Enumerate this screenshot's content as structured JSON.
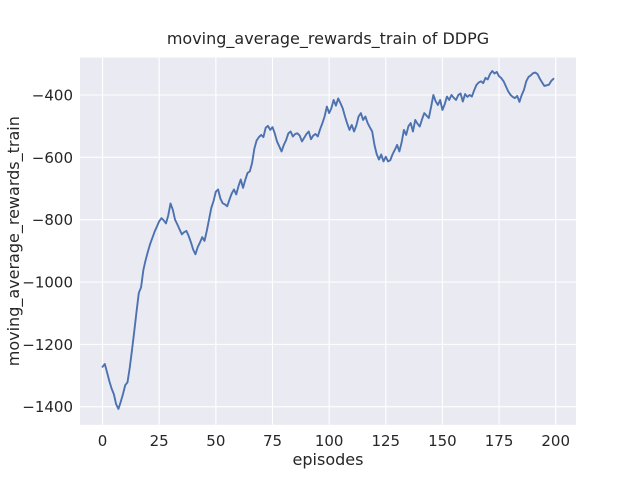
{
  "chart_data": {
    "type": "line",
    "title": "moving_average_rewards_train of DDPG",
    "xlabel": "episodes",
    "ylabel": "moving_average_rewards_train",
    "xticks": [
      0,
      25,
      50,
      75,
      100,
      125,
      150,
      175,
      200
    ],
    "yticks": [
      -400,
      -600,
      -800,
      -1000,
      -1200,
      -1400
    ],
    "xlim": [
      -9.95,
      208.95
    ],
    "ylim": [
      -1458,
      -280
    ],
    "grid": true,
    "legend_position": "none",
    "colors": {
      "figure_background": "#ffffff",
      "plot_background": "#eaeaf2",
      "grid": "#ffffff",
      "text": "#262626",
      "line": "#4c72b0"
    },
    "series": [
      {
        "name": "moving_average_rewards_train",
        "color": "#4c72b0",
        "points": [
          [
            0,
            -1272
          ],
          [
            1,
            -1263
          ],
          [
            2,
            -1290
          ],
          [
            3,
            -1318
          ],
          [
            4,
            -1342
          ],
          [
            5,
            -1360
          ],
          [
            6,
            -1392
          ],
          [
            7,
            -1407
          ],
          [
            8,
            -1385
          ],
          [
            9,
            -1360
          ],
          [
            10,
            -1331
          ],
          [
            11,
            -1322
          ],
          [
            12,
            -1275
          ],
          [
            13,
            -1218
          ],
          [
            14,
            -1158
          ],
          [
            15,
            -1095
          ],
          [
            16,
            -1035
          ],
          [
            17,
            -1017
          ],
          [
            18,
            -962
          ],
          [
            19,
            -930
          ],
          [
            20,
            -903
          ],
          [
            21,
            -878
          ],
          [
            22,
            -858
          ],
          [
            23,
            -838
          ],
          [
            24,
            -822
          ],
          [
            25,
            -805
          ],
          [
            26,
            -795
          ],
          [
            27,
            -802
          ],
          [
            28,
            -812
          ],
          [
            29,
            -786
          ],
          [
            30,
            -748
          ],
          [
            31,
            -768
          ],
          [
            32,
            -800
          ],
          [
            33,
            -815
          ],
          [
            34,
            -831
          ],
          [
            35,
            -847
          ],
          [
            36,
            -840
          ],
          [
            37,
            -836
          ],
          [
            38,
            -852
          ],
          [
            39,
            -872
          ],
          [
            40,
            -896
          ],
          [
            41,
            -911
          ],
          [
            42,
            -888
          ],
          [
            43,
            -873
          ],
          [
            44,
            -856
          ],
          [
            45,
            -868
          ],
          [
            46,
            -836
          ],
          [
            47,
            -799
          ],
          [
            48,
            -762
          ],
          [
            49,
            -740
          ],
          [
            50,
            -710
          ],
          [
            51,
            -703
          ],
          [
            52,
            -732
          ],
          [
            53,
            -747
          ],
          [
            54,
            -751
          ],
          [
            55,
            -757
          ],
          [
            56,
            -736
          ],
          [
            57,
            -716
          ],
          [
            58,
            -703
          ],
          [
            59,
            -719
          ],
          [
            60,
            -692
          ],
          [
            61,
            -671
          ],
          [
            62,
            -698
          ],
          [
            63,
            -672
          ],
          [
            64,
            -650
          ],
          [
            65,
            -645
          ],
          [
            66,
            -618
          ],
          [
            67,
            -572
          ],
          [
            68,
            -546
          ],
          [
            69,
            -535
          ],
          [
            70,
            -528
          ],
          [
            71,
            -535
          ],
          [
            72,
            -505
          ],
          [
            73,
            -499
          ],
          [
            74,
            -512
          ],
          [
            75,
            -503
          ],
          [
            76,
            -523
          ],
          [
            77,
            -549
          ],
          [
            78,
            -565
          ],
          [
            79,
            -581
          ],
          [
            80,
            -560
          ],
          [
            81,
            -545
          ],
          [
            82,
            -523
          ],
          [
            83,
            -517
          ],
          [
            84,
            -533
          ],
          [
            85,
            -525
          ],
          [
            86,
            -523
          ],
          [
            87,
            -530
          ],
          [
            88,
            -549
          ],
          [
            89,
            -537
          ],
          [
            90,
            -525
          ],
          [
            91,
            -517
          ],
          [
            92,
            -542
          ],
          [
            93,
            -530
          ],
          [
            94,
            -525
          ],
          [
            95,
            -533
          ],
          [
            96,
            -510
          ],
          [
            97,
            -491
          ],
          [
            98,
            -469
          ],
          [
            99,
            -437
          ],
          [
            100,
            -458
          ],
          [
            101,
            -442
          ],
          [
            102,
            -416
          ],
          [
            103,
            -434
          ],
          [
            104,
            -411
          ],
          [
            105,
            -426
          ],
          [
            106,
            -443
          ],
          [
            107,
            -469
          ],
          [
            108,
            -492
          ],
          [
            109,
            -512
          ],
          [
            110,
            -496
          ],
          [
            111,
            -517
          ],
          [
            112,
            -498
          ],
          [
            113,
            -469
          ],
          [
            114,
            -458
          ],
          [
            115,
            -480
          ],
          [
            116,
            -469
          ],
          [
            117,
            -490
          ],
          [
            118,
            -504
          ],
          [
            119,
            -517
          ],
          [
            120,
            -560
          ],
          [
            121,
            -590
          ],
          [
            122,
            -607
          ],
          [
            123,
            -591
          ],
          [
            124,
            -613
          ],
          [
            125,
            -598
          ],
          [
            126,
            -613
          ],
          [
            127,
            -609
          ],
          [
            128,
            -590
          ],
          [
            129,
            -576
          ],
          [
            130,
            -560
          ],
          [
            131,
            -581
          ],
          [
            132,
            -552
          ],
          [
            133,
            -512
          ],
          [
            134,
            -528
          ],
          [
            135,
            -500
          ],
          [
            136,
            -490
          ],
          [
            137,
            -517
          ],
          [
            138,
            -480
          ],
          [
            139,
            -492
          ],
          [
            140,
            -501
          ],
          [
            141,
            -478
          ],
          [
            142,
            -458
          ],
          [
            143,
            -466
          ],
          [
            144,
            -474
          ],
          [
            145,
            -438
          ],
          [
            146,
            -400
          ],
          [
            147,
            -420
          ],
          [
            148,
            -432
          ],
          [
            149,
            -416
          ],
          [
            150,
            -448
          ],
          [
            151,
            -430
          ],
          [
            152,
            -405
          ],
          [
            153,
            -416
          ],
          [
            154,
            -400
          ],
          [
            155,
            -409
          ],
          [
            156,
            -416
          ],
          [
            157,
            -400
          ],
          [
            158,
            -395
          ],
          [
            159,
            -421
          ],
          [
            160,
            -397
          ],
          [
            161,
            -406
          ],
          [
            162,
            -400
          ],
          [
            163,
            -405
          ],
          [
            164,
            -385
          ],
          [
            165,
            -368
          ],
          [
            166,
            -360
          ],
          [
            167,
            -356
          ],
          [
            168,
            -362
          ],
          [
            169,
            -345
          ],
          [
            170,
            -350
          ],
          [
            171,
            -333
          ],
          [
            172,
            -323
          ],
          [
            173,
            -331
          ],
          [
            174,
            -326
          ],
          [
            175,
            -340
          ],
          [
            176,
            -346
          ],
          [
            177,
            -356
          ],
          [
            178,
            -372
          ],
          [
            179,
            -388
          ],
          [
            180,
            -399
          ],
          [
            181,
            -406
          ],
          [
            182,
            -410
          ],
          [
            183,
            -403
          ],
          [
            184,
            -422
          ],
          [
            185,
            -400
          ],
          [
            186,
            -383
          ],
          [
            187,
            -356
          ],
          [
            188,
            -342
          ],
          [
            189,
            -337
          ],
          [
            190,
            -330
          ],
          [
            191,
            -328
          ],
          [
            192,
            -333
          ],
          [
            193,
            -348
          ],
          [
            194,
            -360
          ],
          [
            195,
            -371
          ],
          [
            196,
            -369
          ],
          [
            197,
            -367
          ],
          [
            198,
            -355
          ],
          [
            199,
            -348
          ]
        ]
      }
    ]
  }
}
